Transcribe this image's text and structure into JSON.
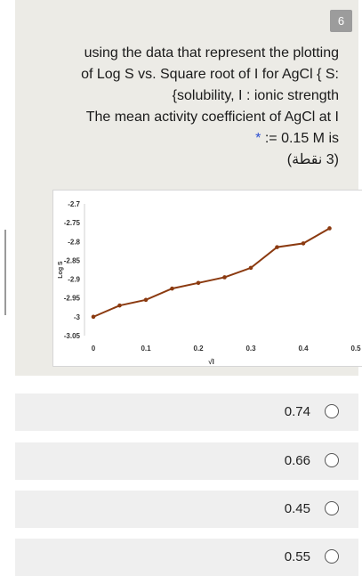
{
  "question": {
    "number": "6",
    "lines": [
      "using the data that represent the plotting",
      "of Log S vs. Square root of I for AgCl { S:",
      "{solubility, I : ionic strength",
      "The mean activity coefficient of AgCl at I",
      ":= 0.15 M is",
      "(3 نقطة)"
    ],
    "required_marker": "*"
  },
  "chart_data": {
    "type": "line",
    "title": "",
    "xlabel": "√I",
    "ylabel": "Log S",
    "xlim": [
      0,
      0.5
    ],
    "ylim": [
      -3.05,
      -2.7
    ],
    "x_ticks": [
      "0",
      "0.1",
      "0.2",
      "0.3",
      "0.4",
      "0.5"
    ],
    "y_ticks": [
      "-2.7",
      "-2.75",
      "-2.8",
      "-2.85",
      "-2.9",
      "-2.95",
      "-3",
      "-3.05"
    ],
    "grid": false,
    "color": "#8b3a10",
    "series": [
      {
        "x": [
          0,
          0.05,
          0.1,
          0.15,
          0.2,
          0.25,
          0.3,
          0.35,
          0.4,
          0.45
        ],
        "y": [
          -3.0,
          -2.97,
          -2.955,
          -2.925,
          -2.91,
          -2.895,
          -2.87,
          -2.815,
          -2.805,
          -2.765
        ]
      }
    ]
  },
  "options": [
    {
      "label": "0.74"
    },
    {
      "label": "0.66"
    },
    {
      "label": "0.45"
    },
    {
      "label": "0.55"
    }
  ]
}
